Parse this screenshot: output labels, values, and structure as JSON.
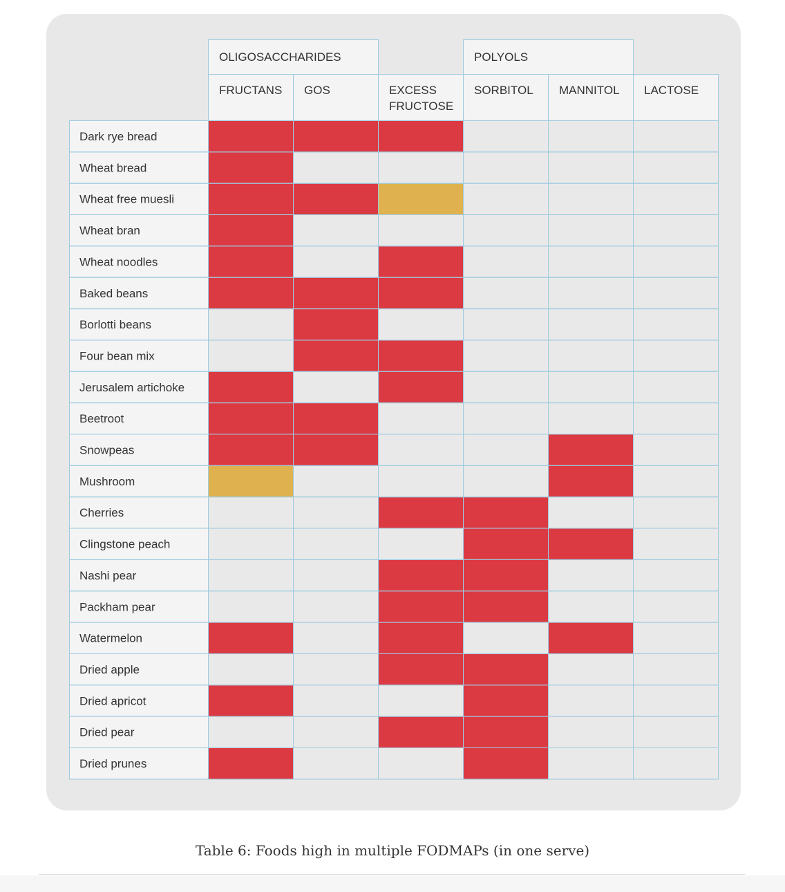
{
  "chart_data": {
    "type": "table",
    "title": "",
    "group_headers": [
      {
        "label": "OLIGOSACCHARIDES",
        "columns": [
          "FRUCTANS",
          "GOS"
        ]
      },
      {
        "label": "POLYOLS",
        "columns": [
          "SORBITOL",
          "MANNITOL"
        ]
      }
    ],
    "columns": [
      {
        "label": "FRUCTANS",
        "lines": [
          "FRUCTANS"
        ]
      },
      {
        "label": "GOS",
        "lines": [
          "GOS"
        ]
      },
      {
        "label": "EXCESS FRUCTOSE",
        "lines": [
          "EXCESS",
          "FRUCTOSE"
        ]
      },
      {
        "label": "SORBITOL",
        "lines": [
          "SORBITOL"
        ]
      },
      {
        "label": "MANNITOL",
        "lines": [
          "MANNITOL"
        ]
      },
      {
        "label": "LACTOSE",
        "lines": [
          "LACTOSE"
        ]
      }
    ],
    "rows": [
      {
        "food": "Dark rye bread",
        "values": [
          2,
          2,
          2,
          0,
          0,
          0
        ]
      },
      {
        "food": "Wheat bread",
        "values": [
          2,
          0,
          0,
          0,
          0,
          0
        ]
      },
      {
        "food": "Wheat free muesli",
        "values": [
          2,
          2,
          1,
          0,
          0,
          0
        ]
      },
      {
        "food": "Wheat bran",
        "values": [
          2,
          0,
          0,
          0,
          0,
          0
        ]
      },
      {
        "food": "Wheat noodles",
        "values": [
          2,
          0,
          2,
          0,
          0,
          0
        ]
      },
      {
        "food": "Baked beans",
        "values": [
          2,
          2,
          2,
          0,
          0,
          0
        ]
      },
      {
        "food": "Borlotti beans",
        "values": [
          0,
          2,
          0,
          0,
          0,
          0
        ]
      },
      {
        "food": "Four bean mix",
        "values": [
          0,
          2,
          2,
          0,
          0,
          0
        ]
      },
      {
        "food": "Jerusalem artichoke",
        "values": [
          2,
          0,
          2,
          0,
          0,
          0
        ]
      },
      {
        "food": "Beetroot",
        "values": [
          2,
          2,
          0,
          0,
          0,
          0
        ]
      },
      {
        "food": "Snowpeas",
        "values": [
          2,
          2,
          0,
          0,
          2,
          0
        ]
      },
      {
        "food": "Mushroom",
        "values": [
          1,
          0,
          0,
          0,
          2,
          0
        ]
      },
      {
        "food": "Cherries",
        "values": [
          0,
          0,
          2,
          2,
          0,
          0
        ]
      },
      {
        "food": "Clingstone peach",
        "values": [
          0,
          0,
          0,
          2,
          2,
          0
        ]
      },
      {
        "food": "Nashi pear",
        "values": [
          0,
          0,
          2,
          2,
          0,
          0
        ]
      },
      {
        "food": "Packham pear",
        "values": [
          0,
          0,
          2,
          2,
          0,
          0
        ]
      },
      {
        "food": "Watermelon",
        "values": [
          2,
          0,
          2,
          0,
          2,
          0
        ]
      },
      {
        "food": "Dried apple",
        "values": [
          0,
          0,
          2,
          2,
          0,
          0
        ]
      },
      {
        "food": "Dried apricot",
        "values": [
          2,
          0,
          0,
          2,
          0,
          0
        ]
      },
      {
        "food": "Dried pear",
        "values": [
          0,
          0,
          2,
          2,
          0,
          0
        ]
      },
      {
        "food": "Dried prunes",
        "values": [
          2,
          0,
          0,
          2,
          0,
          0
        ]
      }
    ],
    "level_colors": {
      "0": "#e9e9e9",
      "1": "#dfb24f",
      "2": "#dc3a43"
    },
    "grid_color": "#9fcbe0",
    "text_color": "#333333"
  },
  "caption": "Table 6: Foods high in multiple FODMAPs (in one serve)"
}
